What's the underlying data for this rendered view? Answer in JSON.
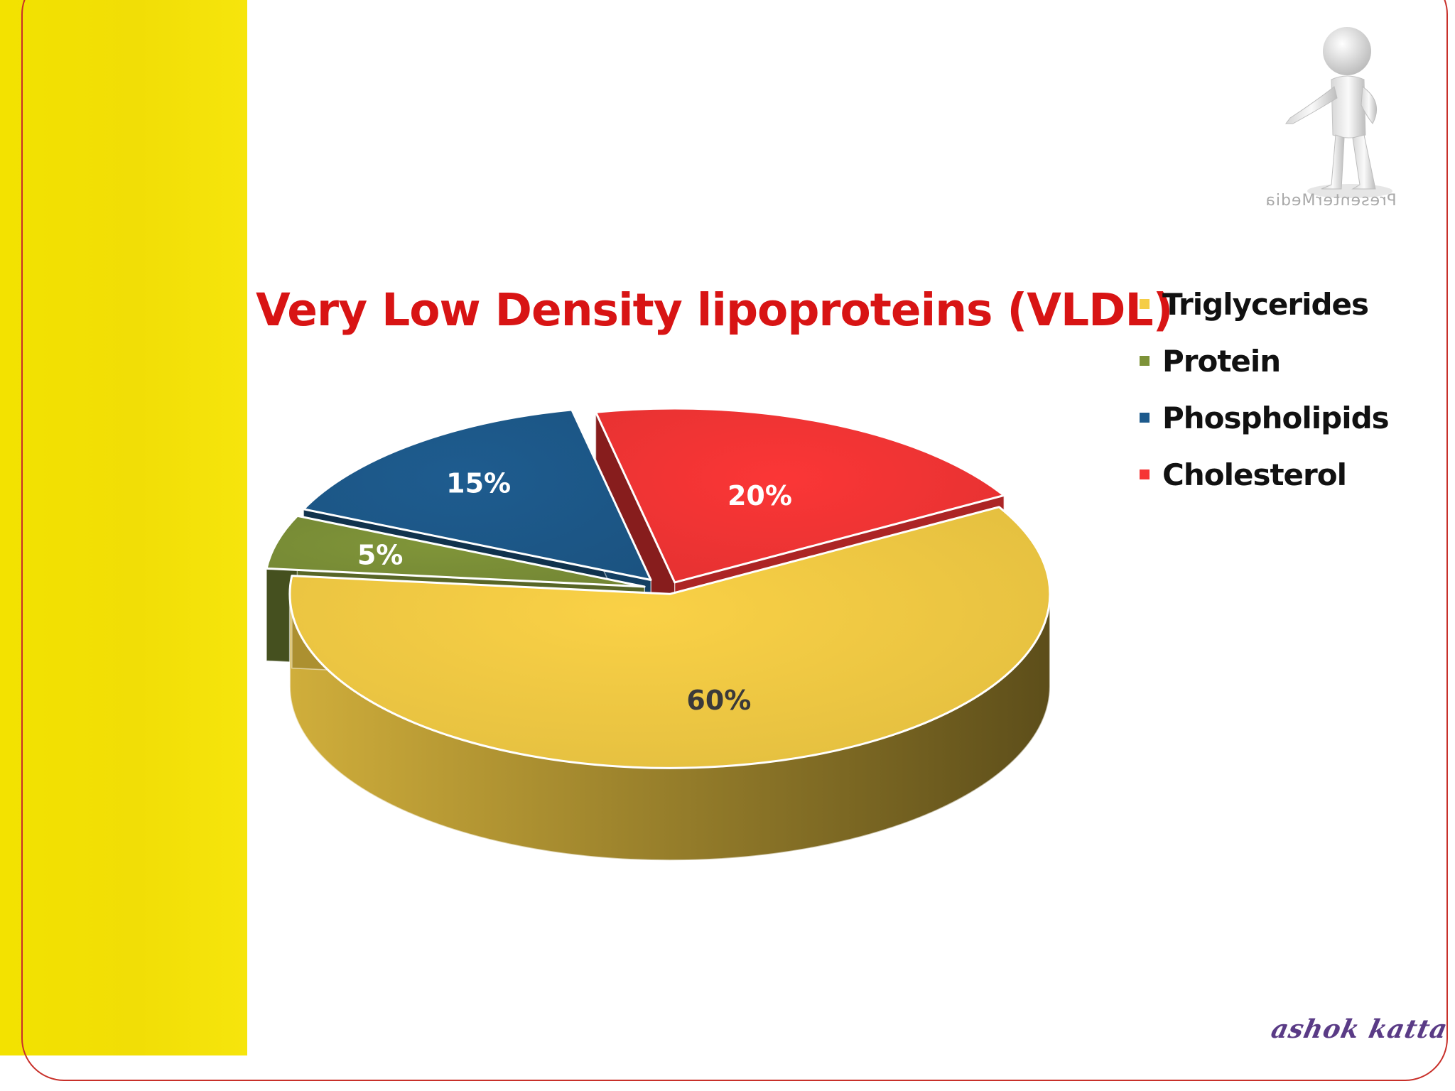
{
  "slide": {
    "watermark": "PresenterMedia",
    "signature": "ashok katta"
  },
  "colors": {
    "side_bar": "#f3e200",
    "title": "#d81414",
    "frame": "#c8302a"
  },
  "chart_data": {
    "type": "pie",
    "title": "Very Low Density lipoproteins (VLDL)",
    "style": "3d-exploded",
    "legend_position": "right",
    "slices": [
      {
        "label": "Triglycerides",
        "value": 60,
        "data_label": "60%",
        "color": "#f5cd45"
      },
      {
        "label": "Protein",
        "value": 5,
        "data_label": "5%",
        "color": "#7d9238"
      },
      {
        "label": "Phospholipids",
        "value": 15,
        "data_label": "15%",
        "color": "#1d5a8c"
      },
      {
        "label": "Cholesterol",
        "value": 20,
        "data_label": "20%",
        "color": "#f63535"
      }
    ]
  }
}
